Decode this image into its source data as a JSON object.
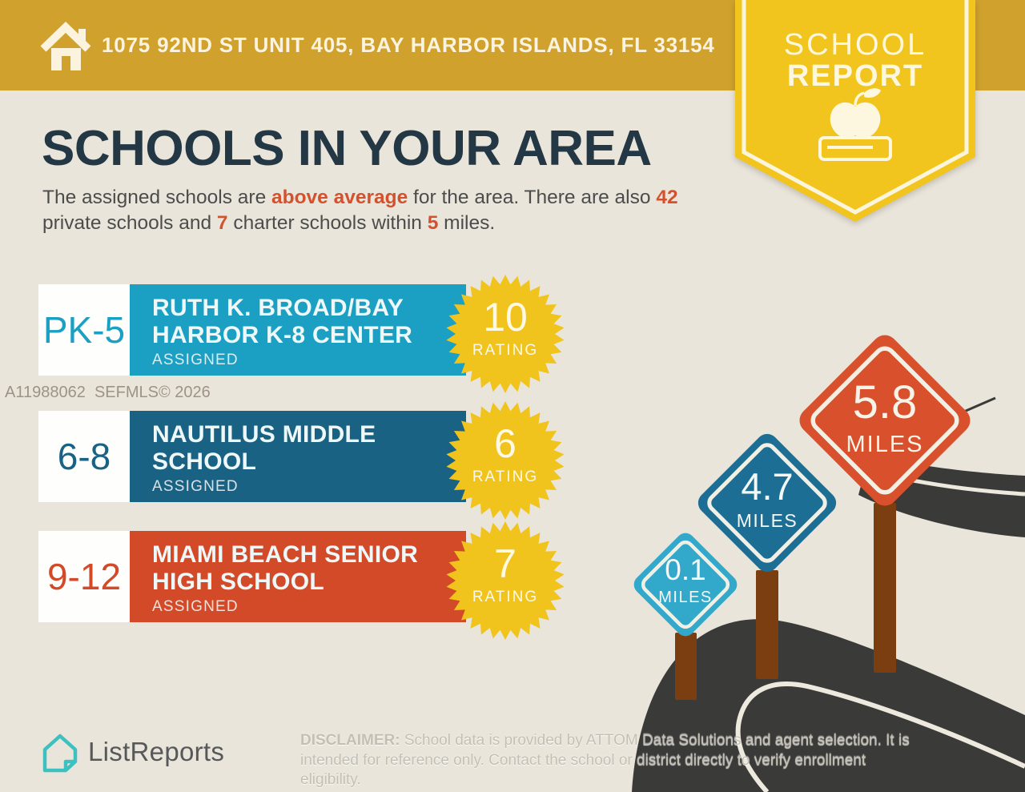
{
  "header": {
    "address": "1075 92ND ST UNIT 405, BAY HARBOR ISLANDS, FL 33154",
    "bar_color": "#D0A22D"
  },
  "badge": {
    "line1": "SCHOOL",
    "line2": "REPORT",
    "color": "#F2C41E",
    "icon": "apple-on-book-icon"
  },
  "intro": {
    "title": "SCHOOLS IN YOUR AREA",
    "seg1": "The assigned schools are ",
    "seg2": "above average",
    "seg3": " for the area. There are also ",
    "seg4": "42",
    "seg5": " private schools and ",
    "seg6": "7",
    "seg7": " charter schools within ",
    "seg8": "5",
    "seg9": " miles.",
    "accent_color": "#D4512E",
    "heading_color": "#233744"
  },
  "watermark": "A11988062  SEFMLS© 2026",
  "schools": [
    {
      "grade": "PK-5",
      "name": "RUTH K. BROAD/BAY HARBOR K-8 CENTER",
      "status": "ASSIGNED",
      "rating": "10",
      "rating_label": "RATING",
      "color": "#1BA0C4"
    },
    {
      "grade": "6-8",
      "name": "NAUTILUS MIDDLE SCHOOL",
      "status": "ASSIGNED",
      "rating": "6",
      "rating_label": "RATING",
      "color": "#1A6284"
    },
    {
      "grade": "9-12",
      "name": "MIAMI BEACH SENIOR HIGH SCHOOL",
      "status": "ASSIGNED",
      "rating": "7",
      "rating_label": "RATING",
      "color": "#D24A28"
    }
  ],
  "signs": [
    {
      "distance": "0.1",
      "unit": "MILES",
      "color": "#32A8CA"
    },
    {
      "distance": "4.7",
      "unit": "MILES",
      "color": "#1D6E94"
    },
    {
      "distance": "5.8",
      "unit": "MILES",
      "color": "#D8502C"
    }
  ],
  "scene": {
    "road_color": "#3A3A38",
    "road_line_color": "#EDE9DE",
    "post_color": "#7B3E10",
    "background": "#EAE5DA",
    "star_color": "#F0C41D"
  },
  "footer": {
    "brand": "ListReports",
    "brand_icon_color": "#3CC0C0",
    "disclaimer_label": "DISCLAIMER:",
    "disclaimer_text": " School data is provided by ATTOM Data Solutions and agent selection. It is intended for reference only. Contact the school or district directly to verify enrollment eligibility."
  }
}
